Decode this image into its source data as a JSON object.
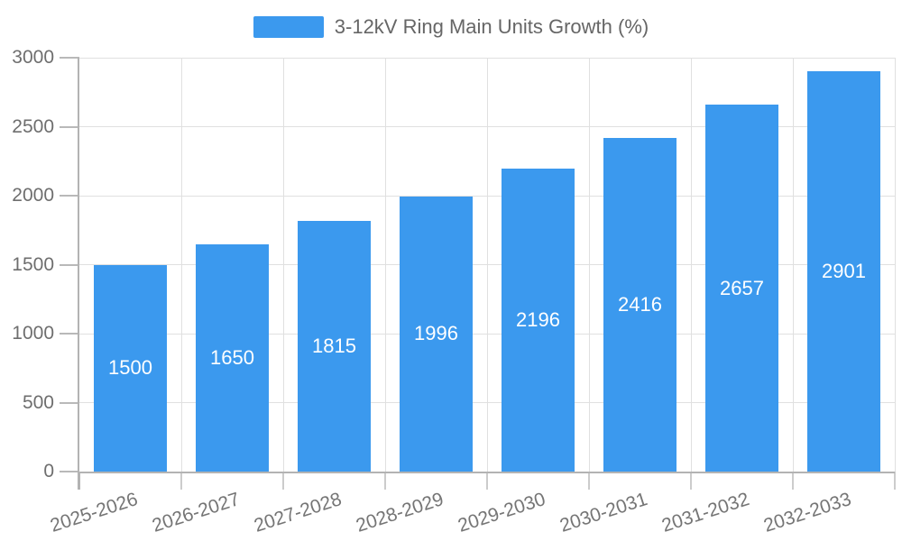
{
  "legend": {
    "label": "3-12kV Ring Main Units Growth (%)"
  },
  "colors": {
    "bar": "#3b99ee",
    "bar_label_text": "#ffffff",
    "axis_line": "#b3b3b3",
    "y_tick_line": "#b9b9b9",
    "x_tick_line": "#cccccc",
    "grid_line": "#e0e0e0",
    "axis_text": "#6e6e6e",
    "x_axis_text": "#757575",
    "legend_text": "#666666",
    "background": "#ffffff"
  },
  "chart_data": {
    "type": "bar",
    "title": "",
    "legend_entries": [
      "3-12kV Ring Main Units Growth (%)"
    ],
    "legend_position": "top-center",
    "categories": [
      "2025-2026",
      "2026-2027",
      "2027-2028",
      "2028-2029",
      "2029-2030",
      "2030-2031",
      "2031-2032",
      "2032-2033"
    ],
    "series": [
      {
        "name": "3-12kV Ring Main Units Growth (%)",
        "values": [
          1500,
          1650,
          1815,
          1996,
          2196,
          2416,
          2657,
          2901
        ]
      }
    ],
    "bar_value_labels": [
      1500,
      1650,
      1815,
      1996,
      2196,
      2416,
      2657,
      2901
    ],
    "xlabel": "",
    "ylabel": "",
    "ylim": [
      0,
      3000
    ],
    "yticks": [
      0,
      500,
      1000,
      1500,
      2000,
      2500,
      3000
    ],
    "grid": true,
    "x_label_rotation_deg": -18
  }
}
